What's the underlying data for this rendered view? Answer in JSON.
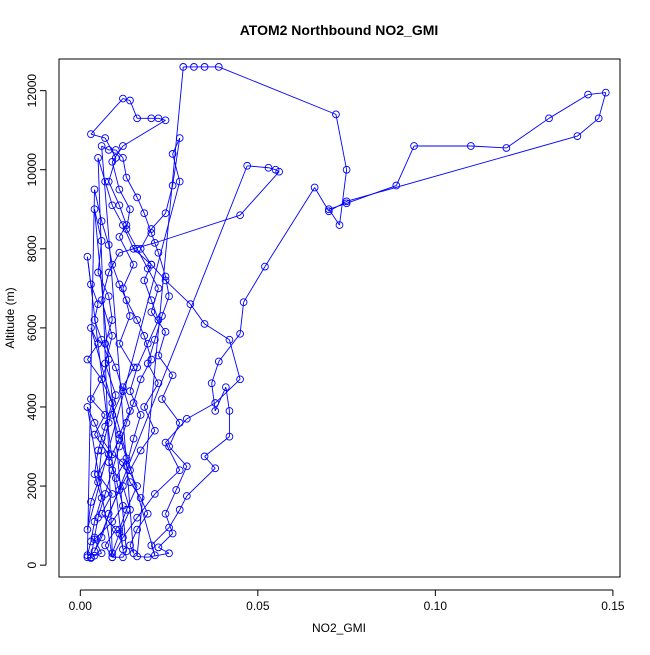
{
  "chart_data": {
    "type": "scatter",
    "title": "ATOM2 Northbound NO2_GMI",
    "xlabel": "NO2_GMI",
    "ylabel": "Altitude (m)",
    "xlim": [
      -0.006,
      0.152
    ],
    "ylim": [
      -300,
      12800
    ],
    "x_ticks": [
      0.0,
      0.05,
      0.1,
      0.15
    ],
    "x_tick_labels": [
      "0.00",
      "0.05",
      "0.10",
      "0.15"
    ],
    "y_ticks": [
      0,
      2000,
      4000,
      6000,
      8000,
      10000,
      12000
    ],
    "y_tick_labels": [
      "0",
      "2000",
      "4000",
      "6000",
      "8000",
      "10000",
      "12000"
    ],
    "grid": false,
    "legend": "none",
    "colors": {
      "series": "#0000ff",
      "axes": "#000000",
      "background": "#ffffff"
    },
    "series": [
      {
        "marker": "open-circle",
        "line": true,
        "points": [
          [
            0.002,
            200
          ],
          [
            0.003,
            180
          ],
          [
            0.004,
            240
          ],
          [
            0.006,
            300
          ],
          [
            0.004,
            650
          ],
          [
            0.009,
            1100
          ],
          [
            0.012,
            1500
          ],
          [
            0.01,
            2200
          ],
          [
            0.013,
            2700
          ],
          [
            0.011,
            3300
          ],
          [
            0.014,
            3900
          ],
          [
            0.012,
            4500
          ],
          [
            0.015,
            5000
          ],
          [
            0.011,
            5600
          ],
          [
            0.014,
            6300
          ],
          [
            0.012,
            7000
          ],
          [
            0.015,
            7600
          ],
          [
            0.011,
            8300
          ],
          [
            0.013,
            8600
          ],
          [
            0.011,
            9100
          ],
          [
            0.008,
            9700
          ],
          [
            0.01,
            10300
          ],
          [
            0.007,
            10800
          ],
          [
            0.003,
            10900
          ],
          [
            0.012,
            11800
          ],
          [
            0.014,
            11750
          ],
          [
            0.016,
            11300
          ],
          [
            0.02,
            11300
          ],
          [
            0.022,
            11300
          ],
          [
            0.024,
            11250
          ],
          [
            0.012,
            10600
          ],
          [
            0.009,
            10200
          ],
          [
            0.011,
            9500
          ],
          [
            0.014,
            9000
          ],
          [
            0.013,
            8500
          ],
          [
            0.016,
            8000
          ],
          [
            0.019,
            7500
          ],
          [
            0.022,
            7000
          ],
          [
            0.02,
            6400
          ],
          [
            0.024,
            5900
          ],
          [
            0.022,
            5300
          ],
          [
            0.026,
            4800
          ],
          [
            0.023,
            4200
          ],
          [
            0.028,
            3600
          ],
          [
            0.025,
            3000
          ],
          [
            0.03,
            2500
          ],
          [
            0.027,
            1900
          ],
          [
            0.024,
            1300
          ],
          [
            0.026,
            800
          ],
          [
            0.022,
            450
          ],
          [
            0.025,
            300
          ],
          [
            0.019,
            200
          ],
          [
            0.016,
            220
          ],
          [
            0.029,
            12600
          ],
          [
            0.032,
            12600
          ],
          [
            0.035,
            12600
          ],
          [
            0.039,
            12600
          ],
          [
            0.072,
            11400
          ],
          [
            0.075,
            10000
          ],
          [
            0.073,
            8600
          ],
          [
            0.07,
            9000
          ],
          [
            0.075,
            9150
          ],
          [
            0.089,
            9600
          ],
          [
            0.094,
            10600
          ],
          [
            0.11,
            10600
          ],
          [
            0.12,
            10550
          ],
          [
            0.132,
            11300
          ],
          [
            0.143,
            11900
          ],
          [
            0.148,
            11950
          ],
          [
            0.146,
            11300
          ],
          [
            0.14,
            10850
          ],
          [
            0.075,
            9200
          ],
          [
            0.07,
            8950
          ],
          [
            0.066,
            9550
          ],
          [
            0.052,
            7550
          ],
          [
            0.046,
            6650
          ],
          [
            0.045,
            5850
          ],
          [
            0.039,
            5150
          ],
          [
            0.037,
            4600
          ],
          [
            0.038,
            3900
          ],
          [
            0.041,
            4500
          ],
          [
            0.042,
            3900
          ],
          [
            0.042,
            3250
          ],
          [
            0.035,
            2750
          ],
          [
            0.038,
            2450
          ],
          [
            0.03,
            1750
          ],
          [
            0.028,
            1400
          ],
          [
            0.025,
            950
          ],
          [
            0.02,
            500
          ],
          [
            0.021,
            250
          ],
          [
            0.003,
            6000
          ],
          [
            0.005,
            5600
          ],
          [
            0.002,
            5200
          ],
          [
            0.006,
            4700
          ],
          [
            0.003,
            4200
          ],
          [
            0.007,
            3800
          ],
          [
            0.004,
            3300
          ],
          [
            0.008,
            2800
          ],
          [
            0.005,
            2300
          ],
          [
            0.009,
            1800
          ],
          [
            0.006,
            1300
          ],
          [
            0.01,
            900
          ],
          [
            0.007,
            500
          ],
          [
            0.009,
            200
          ],
          [
            0.012,
            200
          ],
          [
            0.013,
            350
          ],
          [
            0.004,
            9000
          ],
          [
            0.006,
            8200
          ],
          [
            0.005,
            7400
          ],
          [
            0.008,
            6800
          ],
          [
            0.009,
            6200
          ],
          [
            0.007,
            5600
          ],
          [
            0.01,
            5000
          ],
          [
            0.012,
            4400
          ],
          [
            0.009,
            3800
          ],
          [
            0.011,
            3200
          ],
          [
            0.008,
            2600
          ],
          [
            0.012,
            2000
          ],
          [
            0.014,
            1400
          ],
          [
            0.011,
            800
          ],
          [
            0.009,
            300
          ],
          [
            0.005,
            10300
          ],
          [
            0.007,
            9700
          ],
          [
            0.009,
            9100
          ],
          [
            0.012,
            8600
          ],
          [
            0.015,
            8000
          ],
          [
            0.02,
            7600
          ],
          [
            0.024,
            7200
          ],
          [
            0.031,
            6600
          ],
          [
            0.035,
            6100
          ],
          [
            0.042,
            5700
          ],
          [
            0.045,
            4700
          ],
          [
            0.038,
            4100
          ],
          [
            0.03,
            3700
          ],
          [
            0.024,
            3100
          ],
          [
            0.028,
            2400
          ],
          [
            0.021,
            1800
          ],
          [
            0.016,
            1200
          ],
          [
            0.012,
            700
          ],
          [
            0.009,
            200
          ],
          [
            0.002,
            4000
          ],
          [
            0.004,
            3600
          ],
          [
            0.006,
            3200
          ],
          [
            0.009,
            2800
          ],
          [
            0.012,
            2600
          ],
          [
            0.014,
            2100
          ],
          [
            0.017,
            1700
          ],
          [
            0.019,
            1300
          ],
          [
            0.016,
            900
          ],
          [
            0.014,
            500
          ],
          [
            0.015,
            300
          ],
          [
            0.006,
            10600
          ],
          [
            0.008,
            10500
          ],
          [
            0.01,
            10500
          ],
          [
            0.012,
            10300
          ],
          [
            0.013,
            9800
          ],
          [
            0.016,
            9300
          ],
          [
            0.018,
            8900
          ],
          [
            0.02,
            8400
          ],
          [
            0.022,
            7900
          ],
          [
            0.024,
            7300
          ],
          [
            0.025,
            6800
          ],
          [
            0.023,
            6300
          ],
          [
            0.021,
            5700
          ],
          [
            0.019,
            5100
          ],
          [
            0.022,
            4600
          ],
          [
            0.018,
            4000
          ],
          [
            0.021,
            3400
          ],
          [
            0.017,
            2900
          ],
          [
            0.014,
            2400
          ],
          [
            0.011,
            1900
          ],
          [
            0.008,
            1300
          ],
          [
            0.006,
            700
          ],
          [
            0.004,
            350
          ],
          [
            0.047,
            10100
          ],
          [
            0.053,
            10050
          ],
          [
            0.055,
            10000
          ],
          [
            0.056,
            9950
          ],
          [
            0.045,
            8850
          ],
          [
            0.021,
            8150
          ],
          [
            0.011,
            7900
          ],
          [
            0.008,
            7400
          ],
          [
            0.006,
            6700
          ],
          [
            0.009,
            5800
          ],
          [
            0.007,
            5100
          ],
          [
            0.01,
            4300
          ],
          [
            0.008,
            3600
          ],
          [
            0.006,
            2900
          ],
          [
            0.005,
            2100
          ],
          [
            0.003,
            1600
          ],
          [
            0.002,
            900
          ],
          [
            0.028,
            9700
          ],
          [
            0.026,
            10400
          ],
          [
            0.028,
            10800
          ],
          [
            0.026,
            9600
          ],
          [
            0.024,
            8900
          ],
          [
            0.02,
            8500
          ],
          [
            0.017,
            8000
          ],
          [
            0.02,
            7600
          ],
          [
            0.018,
            7200
          ],
          [
            0.02,
            6700
          ],
          [
            0.022,
            6200
          ],
          [
            0.019,
            5600
          ],
          [
            0.016,
            5000
          ],
          [
            0.014,
            4400
          ],
          [
            0.017,
            3800
          ],
          [
            0.015,
            3200
          ],
          [
            0.013,
            2500
          ],
          [
            0.016,
            2000
          ],
          [
            0.013,
            1400
          ],
          [
            0.011,
            900
          ],
          [
            0.012,
            400
          ],
          [
            0.002,
            7800
          ],
          [
            0.003,
            7100
          ],
          [
            0.005,
            6600
          ],
          [
            0.004,
            6200
          ],
          [
            0.006,
            5700
          ],
          [
            0.008,
            5200
          ],
          [
            0.006,
            4700
          ],
          [
            0.009,
            4100
          ],
          [
            0.007,
            3500
          ],
          [
            0.005,
            2900
          ],
          [
            0.004,
            2300
          ],
          [
            0.006,
            1700
          ],
          [
            0.004,
            1100
          ],
          [
            0.003,
            600
          ],
          [
            0.002,
            250
          ],
          [
            0.004,
            9500
          ],
          [
            0.006,
            8700
          ],
          [
            0.008,
            8100
          ],
          [
            0.009,
            7600
          ],
          [
            0.011,
            7100
          ],
          [
            0.013,
            6700
          ],
          [
            0.016,
            6200
          ],
          [
            0.018,
            5800
          ],
          [
            0.02,
            5200
          ],
          [
            0.017,
            4700
          ],
          [
            0.015,
            4100
          ],
          [
            0.013,
            3600
          ],
          [
            0.011,
            3000
          ],
          [
            0.009,
            2400
          ],
          [
            0.007,
            1800
          ],
          [
            0.005,
            1200
          ],
          [
            0.004,
            700
          ],
          [
            0.003,
            200
          ]
        ]
      }
    ]
  }
}
